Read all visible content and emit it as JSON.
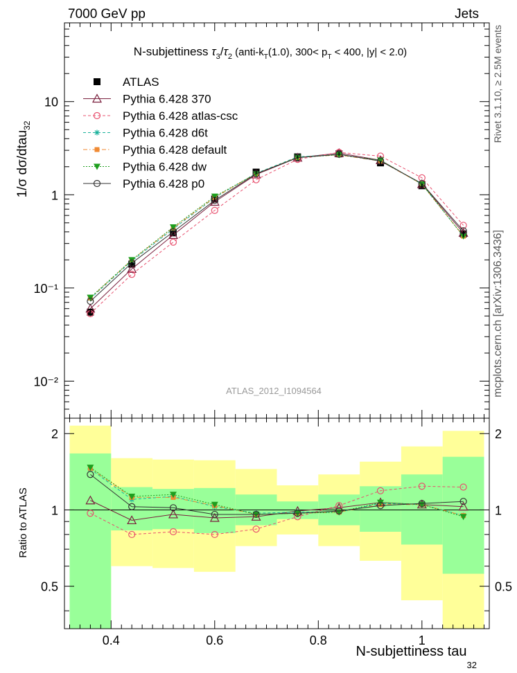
{
  "header": {
    "energy_label": "7000 GeV pp",
    "process_label": "Jets"
  },
  "side_labels": {
    "rivet": "Rivet 3.1.10, ≥ 2.5M events",
    "mcplots": "mcplots.cern.ch [arXiv:1306.3436]"
  },
  "watermark": "ATLAS_2012_I1094564",
  "chart_data": [
    {
      "type": "line",
      "title": "N-subjettiness τ₃/τ₂ (anti-k_T(1.0), 300< p_T < 400, |y| < 2.0)",
      "ylabel": "1/σ dσ/dtau_32",
      "xlim": [
        0.31,
        1.13
      ],
      "ylim": [
        0.004,
        70
      ],
      "yscale": "log",
      "yticks": [
        "10⁻²",
        "10⁻¹",
        "1",
        "10"
      ],
      "x": [
        0.36,
        0.44,
        0.52,
        0.6,
        0.68,
        0.76,
        0.84,
        0.92,
        1.0,
        1.08
      ],
      "series": [
        {
          "name": "ATLAS",
          "color": "#000000",
          "marker": "filled-square",
          "line": "none",
          "values": [
            0.055,
            0.18,
            0.39,
            0.9,
            1.75,
            2.55,
            2.75,
            2.2,
            1.25,
            0.38
          ],
          "errors": [
            0.005,
            0.01,
            0.02,
            0.04,
            0.07,
            0.1,
            0.11,
            0.09,
            0.06,
            0.03
          ]
        },
        {
          "name": "Pythia 6.428 370",
          "color": "#7a1f3d",
          "marker": "open-triangle",
          "line": "solid",
          "values": [
            0.06,
            0.16,
            0.37,
            0.84,
            1.65,
            2.5,
            2.8,
            2.35,
            1.3,
            0.39
          ]
        },
        {
          "name": "Pythia 6.428 atlas-csc",
          "color": "#e8506e",
          "marker": "open-circle",
          "line": "dashed",
          "values": [
            0.053,
            0.14,
            0.31,
            0.68,
            1.45,
            2.4,
            2.85,
            2.6,
            1.52,
            0.47
          ]
        },
        {
          "name": "Pythia 6.428 d6t",
          "color": "#18b09a",
          "marker": "asterisk",
          "line": "dashed",
          "values": [
            0.077,
            0.195,
            0.43,
            0.93,
            1.7,
            2.55,
            2.7,
            2.33,
            1.3,
            0.36
          ]
        },
        {
          "name": "Pythia 6.428 default",
          "color": "#f08a33",
          "marker": "filled-square-small",
          "line": "dash-dot",
          "values": [
            0.078,
            0.2,
            0.44,
            0.94,
            1.68,
            2.52,
            2.68,
            2.3,
            1.3,
            0.36
          ]
        },
        {
          "name": "Pythia 6.428 dw",
          "color": "#1e9e1e",
          "marker": "filled-triangle-down",
          "line": "dotted",
          "values": [
            0.079,
            0.2,
            0.45,
            0.96,
            1.68,
            2.52,
            2.68,
            2.35,
            1.3,
            0.36
          ]
        },
        {
          "name": "Pythia 6.428 p0",
          "color": "#333333",
          "marker": "open-circle",
          "line": "solid",
          "values": [
            0.072,
            0.185,
            0.4,
            0.87,
            1.68,
            2.5,
            2.72,
            2.3,
            1.32,
            0.41
          ]
        }
      ]
    },
    {
      "type": "line",
      "ylabel": "Ratio to ATLAS",
      "xlabel": "N-subjettiness tau_32",
      "xlim": [
        0.31,
        1.13
      ],
      "ylim": [
        0.34,
        2.3
      ],
      "yscale": "log",
      "xticks": [
        "0.4",
        "0.6",
        "0.8",
        "1"
      ],
      "yticks": [
        "0.5",
        "1",
        "2"
      ],
      "bins": [
        {
          "lo": 0.32,
          "hi": 0.4,
          "green": [
            0.31,
            1.67
          ],
          "yellow": [
            0.31,
            2.15
          ]
        },
        {
          "lo": 0.4,
          "hi": 0.48,
          "green": [
            0.83,
            1.23
          ],
          "yellow": [
            0.6,
            1.6
          ]
        },
        {
          "lo": 0.48,
          "hi": 0.56,
          "green": [
            0.84,
            1.21
          ],
          "yellow": [
            0.59,
            1.58
          ]
        },
        {
          "lo": 0.56,
          "hi": 0.64,
          "green": [
            0.81,
            1.22
          ],
          "yellow": [
            0.57,
            1.57
          ]
        },
        {
          "lo": 0.64,
          "hi": 0.72,
          "green": [
            0.87,
            1.15
          ],
          "yellow": [
            0.72,
            1.45
          ]
        },
        {
          "lo": 0.72,
          "hi": 0.8,
          "green": [
            0.92,
            1.08
          ],
          "yellow": [
            0.8,
            1.25
          ]
        },
        {
          "lo": 0.8,
          "hi": 0.88,
          "green": [
            0.87,
            1.15
          ],
          "yellow": [
            0.72,
            1.38
          ]
        },
        {
          "lo": 0.88,
          "hi": 0.96,
          "green": [
            0.82,
            1.24
          ],
          "yellow": [
            0.63,
            1.55
          ]
        },
        {
          "lo": 0.96,
          "hi": 1.04,
          "green": [
            0.73,
            1.38
          ],
          "yellow": [
            0.44,
            1.78
          ]
        },
        {
          "lo": 1.04,
          "hi": 1.12,
          "green": [
            0.56,
            1.62
          ],
          "yellow": [
            0.31,
            2.05
          ]
        }
      ],
      "series": [
        {
          "name": "Pythia 6.428 370",
          "color": "#7a1f3d",
          "marker": "open-triangle",
          "line": "solid",
          "values": [
            1.09,
            0.91,
            0.96,
            0.93,
            0.94,
            0.99,
            1.02,
            1.07,
            1.05,
            1.03
          ]
        },
        {
          "name": "Pythia 6.428 atlas-csc",
          "color": "#e8506e",
          "marker": "open-circle",
          "line": "dashed",
          "values": [
            0.97,
            0.8,
            0.82,
            0.8,
            0.84,
            0.94,
            1.04,
            1.19,
            1.24,
            1.23
          ]
        },
        {
          "name": "Pythia 6.428 d6t",
          "color": "#18b09a",
          "marker": "asterisk",
          "line": "dashed",
          "values": [
            1.45,
            1.1,
            1.13,
            1.03,
            0.97,
            0.98,
            0.98,
            1.06,
            1.05,
            0.95
          ]
        },
        {
          "name": "Pythia 6.428 default",
          "color": "#f08a33",
          "marker": "filled-square-small",
          "line": "dash-dot",
          "values": [
            1.46,
            1.12,
            1.12,
            1.04,
            0.96,
            0.97,
            0.98,
            1.05,
            1.05,
            0.95
          ]
        },
        {
          "name": "Pythia 6.428 dw",
          "color": "#1e9e1e",
          "marker": "filled-triangle-down",
          "line": "dotted",
          "values": [
            1.47,
            1.13,
            1.15,
            1.05,
            0.96,
            0.97,
            0.98,
            1.07,
            1.05,
            0.94
          ]
        },
        {
          "name": "Pythia 6.428 p0",
          "color": "#333333",
          "marker": "open-circle",
          "line": "solid",
          "values": [
            1.38,
            1.03,
            1.02,
            0.96,
            0.96,
            0.97,
            0.99,
            1.04,
            1.06,
            1.08
          ]
        }
      ]
    }
  ]
}
